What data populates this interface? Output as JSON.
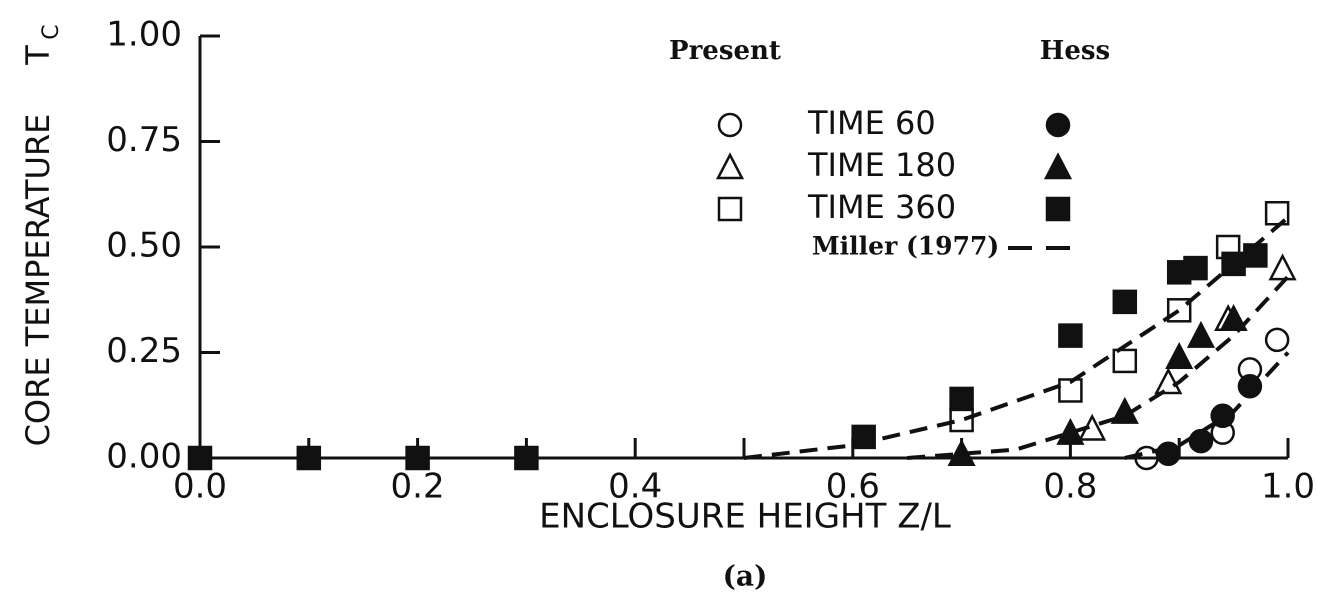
{
  "chart_data": {
    "type": "scatter",
    "xlabel": "ENCLOSURE HEIGHT Z/L",
    "ylabel": "CORE TEMPERATURE",
    "ylabel_symbol": "T",
    "ylabel_subscript": "C",
    "caption": "(a)",
    "legend_headers": [
      "Present",
      "Hess"
    ],
    "xlim": [
      0,
      1.0
    ],
    "ylim": [
      0,
      1.0
    ],
    "xticks": [
      {
        "value": 0,
        "label": "0.0"
      },
      {
        "value": 0.2,
        "label": "0.2"
      },
      {
        "value": 0.4,
        "label": "0.4"
      },
      {
        "value": 0.6,
        "label": "0.6"
      },
      {
        "value": 0.8,
        "label": "0.8"
      },
      {
        "value": 1.0,
        "label": "1.0"
      }
    ],
    "xminorticks": [
      0.1,
      0.3,
      0.5,
      0.7,
      0.9
    ],
    "yticks": [
      {
        "value": 0,
        "label": "0.00"
      },
      {
        "value": 0.25,
        "label": "0.25"
      },
      {
        "value": 0.5,
        "label": "0.50"
      },
      {
        "value": 0.75,
        "label": "0.75"
      },
      {
        "value": 1.0,
        "label": "1.00"
      }
    ],
    "color": "#111111",
    "series": [
      {
        "name": "TIME 60",
        "marker": "circle",
        "present_x": [
          0.87,
          0.94,
          0.965,
          0.99
        ],
        "present_values": [
          0.0,
          0.06,
          0.21,
          0.28
        ],
        "hess_x": [
          0.89,
          0.92,
          0.94,
          0.965
        ],
        "hess_values": [
          0.01,
          0.04,
          0.1,
          0.17
        ]
      },
      {
        "name": "TIME 180",
        "marker": "triangle",
        "present_x": [
          0.82,
          0.89,
          0.945,
          0.995
        ],
        "present_values": [
          0.07,
          0.18,
          0.33,
          0.45
        ],
        "hess_x": [
          0.7,
          0.8,
          0.85,
          0.9,
          0.92,
          0.95
        ],
        "hess_values": [
          0.01,
          0.06,
          0.11,
          0.24,
          0.29,
          0.33
        ]
      },
      {
        "name": "TIME 360",
        "marker": "square",
        "present_x": [
          0.7,
          0.8,
          0.85,
          0.9,
          0.945,
          0.99
        ],
        "present_values": [
          0.09,
          0.16,
          0.23,
          0.35,
          0.5,
          0.58
        ],
        "hess_x": [
          0,
          0.1,
          0.2,
          0.3,
          0.61,
          0.7,
          0.8,
          0.85,
          0.9,
          0.915,
          0.95,
          0.97
        ],
        "hess_values": [
          0,
          0,
          0,
          0,
          0.05,
          0.14,
          0.29,
          0.37,
          0.44,
          0.45,
          0.46,
          0.48
        ]
      }
    ],
    "reference": {
      "name": "Miller (1977)",
      "curves": [
        {
          "x": [
            0.85,
            0.9,
            0.95,
            1.0
          ],
          "values": [
            0,
            0.03,
            0.11,
            0.25
          ]
        },
        {
          "x": [
            0.65,
            0.75,
            0.85,
            0.9,
            0.95,
            1.0
          ],
          "values": [
            0,
            0.02,
            0.1,
            0.18,
            0.29,
            0.43
          ]
        },
        {
          "x": [
            0.5,
            0.6,
            0.7,
            0.8,
            0.9,
            1.0
          ],
          "values": [
            0,
            0.03,
            0.09,
            0.18,
            0.35,
            0.57
          ]
        }
      ]
    }
  }
}
